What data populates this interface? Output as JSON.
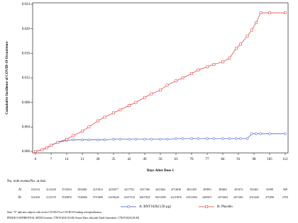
{
  "chart_data": {
    "type": "line",
    "y_label": "Cumulative Incidence of COVID-19 Occurrence",
    "x_label": "Days After Dose 1",
    "x": [
      0,
      3,
      5,
      7,
      10,
      14,
      17,
      21,
      24,
      28,
      31,
      35,
      38,
      42,
      45,
      49,
      52,
      56,
      59,
      63,
      66,
      70,
      73,
      77,
      80,
      84,
      87,
      90,
      92,
      95,
      97,
      99,
      101,
      105,
      112
    ],
    "series": [
      {
        "name": "A: BNT162b2 (30 μg)",
        "color": "#2f4fd0",
        "marker": "circle",
        "values": [
          0,
          0.0003,
          0.0006,
          0.001,
          0.0015,
          0.0018,
          0.0019,
          0.0019,
          0.0019,
          0.0019,
          0.0019,
          0.002,
          0.002,
          0.002,
          0.002,
          0.002,
          0.002,
          0.002,
          0.002,
          0.0021,
          0.0021,
          0.0021,
          0.0021,
          0.0021,
          0.0021,
          0.0021,
          0.0021,
          0.0021,
          0.0021,
          0.0021,
          0.0029,
          0.0029,
          0.0029,
          0.0029,
          0.0029
        ]
      },
      {
        "name": "B: Placebo",
        "color": "#e03030",
        "marker": "square",
        "values": [
          0,
          0.0003,
          0.0006,
          0.001,
          0.0015,
          0.002,
          0.0026,
          0.0033,
          0.004,
          0.005,
          0.0056,
          0.0063,
          0.0068,
          0.0075,
          0.008,
          0.0088,
          0.0094,
          0.01,
          0.0108,
          0.0115,
          0.012,
          0.0127,
          0.0133,
          0.0138,
          0.0142,
          0.0146,
          0.0152,
          0.0168,
          0.0175,
          0.0188,
          0.0198,
          0.021,
          0.0226,
          0.0226,
          0.0226
        ]
      }
    ],
    "xlim": [
      0,
      112
    ],
    "xticks": [
      0,
      7,
      14,
      21,
      28,
      35,
      42,
      49,
      56,
      63,
      70,
      77,
      84,
      91,
      98,
      105,
      112
    ],
    "ylim": [
      0,
      0.024
    ],
    "yticks": [
      {
        "value": 0,
        "label": "0.000"
      },
      {
        "value": 0.004,
        "label": "0.004"
      },
      {
        "value": 0.008,
        "label": "0.008"
      },
      {
        "value": 0.012,
        "label": "0.012"
      },
      {
        "value": 0.016,
        "label": "0.016"
      },
      {
        "value": 0.02,
        "label": "0.020"
      },
      {
        "value": 0.024,
        "label": "0.024"
      }
    ],
    "at_risk": {
      "title": "No. with events/No. at risk:",
      "rows": [
        {
          "label": "A:",
          "cells": [
            "0/21314",
            "21/21230",
            "37/21054",
            "39/20481",
            "41/19314",
            "42/18377",
            "42/17702",
            "43/17186",
            "44/15464",
            "47/14038",
            "48/12169",
            "49/9591",
            "49/6403",
            "49/3374",
            "50/1463",
            "50/398",
            "50/0"
          ]
        },
        {
          "label": "B:",
          "cells": [
            "0/21258",
            "21/21170",
            "55/20970",
            "73/20366",
            "97/19209",
            "123/18220",
            "143/17519",
            "166/17025",
            "192/15290",
            "212/13876",
            "235/11994",
            "249/9471",
            "257/6294",
            "267/3301",
            "274/1449",
            "275/398",
            "275/0"
          ]
        }
      ]
    },
    "notes": [
      "Note: \"S\" indicates subjects with severe COVID-19 or COVID-19 leading to hospitalization.",
      "PFIZER CONFIDENTIAL SDTM Creation: 17NOV2020 (10:49) Source Data: adsl,adef Table Generation: 17NOV2020 (18:40)"
    ]
  }
}
